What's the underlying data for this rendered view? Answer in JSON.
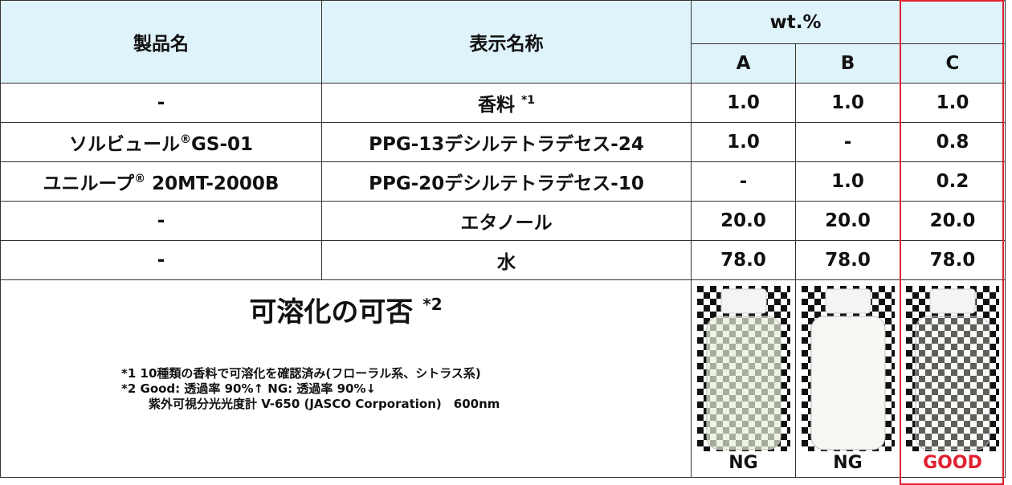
{
  "header": {
    "product": "製品名",
    "display": "表示名称",
    "unit": "wt.%",
    "cols": [
      "A",
      "B",
      "C"
    ]
  },
  "rows": [
    {
      "product": "-",
      "display": "香料",
      "display_note": "*1",
      "values": [
        "1.0",
        "1.0",
        "1.0"
      ]
    },
    {
      "product": "ソルビュール",
      "product_sup": "®",
      "product_suffix": "GS-01",
      "display": "PPG-13デシルテトラデセス-24",
      "values": [
        "1.0",
        "-",
        "0.8"
      ]
    },
    {
      "product": "ユニループ",
      "product_sup": "®",
      "product_suffix": " 20MT-2000B",
      "display": "PPG-20デシルテトラデセス-10",
      "values": [
        "-",
        "1.0",
        "0.2"
      ]
    },
    {
      "product": "-",
      "display": "エタノール",
      "values": [
        "20.0",
        "20.0",
        "20.0"
      ]
    },
    {
      "product": "-",
      "display": "水",
      "values": [
        "78.0",
        "78.0",
        "78.0"
      ]
    }
  ],
  "footer": {
    "title": "可溶化の可否",
    "title_note": "*2",
    "notes": [
      "*1 10種類の香料で可溶化を確認済み(フローラル系、シトラス系)",
      "*2 Good: 透過率 90%↑ NG: 透過率 90%↓",
      "紫外可視分光光度計 V-650 (JASCO Corporation)　600nm"
    ],
    "results": [
      "NG",
      "NG",
      "GOOD"
    ]
  }
}
